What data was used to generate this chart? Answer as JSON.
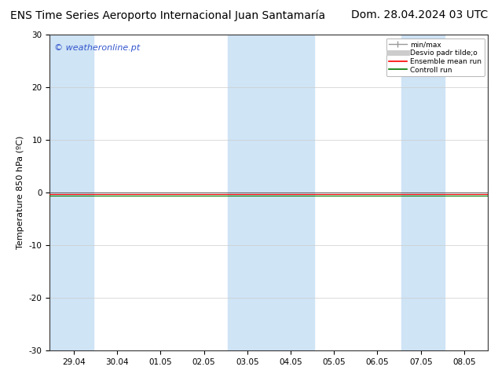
{
  "title_left": "ENS Time Series Aeroporto Internacional Juan Santamaría",
  "title_right": "Dom. 28.04.2024 03 UTC",
  "ylabel": "Temperature 850 hPa (ºC)",
  "watermark": "© weatheronline.pt",
  "ylim": [
    -30,
    30
  ],
  "yticks": [
    -30,
    -20,
    -10,
    0,
    10,
    20,
    30
  ],
  "xtick_labels": [
    "29.04",
    "30.04",
    "01.05",
    "02.05",
    "03.05",
    "04.05",
    "05.05",
    "06.05",
    "07.05",
    "08.05"
  ],
  "background_color": "#ffffff",
  "plot_bg_color": "#ffffff",
  "shade_color": "#cfe4f5",
  "legend_labels": [
    "min/max",
    "Desvio padr tilde;o",
    "Ensemble mean run",
    "Controll run"
  ],
  "legend_colors": [
    "#aaaaaa",
    "#cccccc",
    "#ff0000",
    "#008000"
  ],
  "title_fontsize": 10,
  "watermark_color": "#3355cc",
  "watermark_fontsize": 8,
  "axis_label_fontsize": 8,
  "tick_fontsize": 7.5,
  "figsize": [
    6.34,
    4.9
  ],
  "dpi": 100,
  "line_value": -0.5,
  "shade_ranges": [
    [
      -0.55,
      0.45
    ],
    [
      3.55,
      4.45
    ],
    [
      4.45,
      5.55
    ],
    [
      7.55,
      8.55
    ]
  ]
}
